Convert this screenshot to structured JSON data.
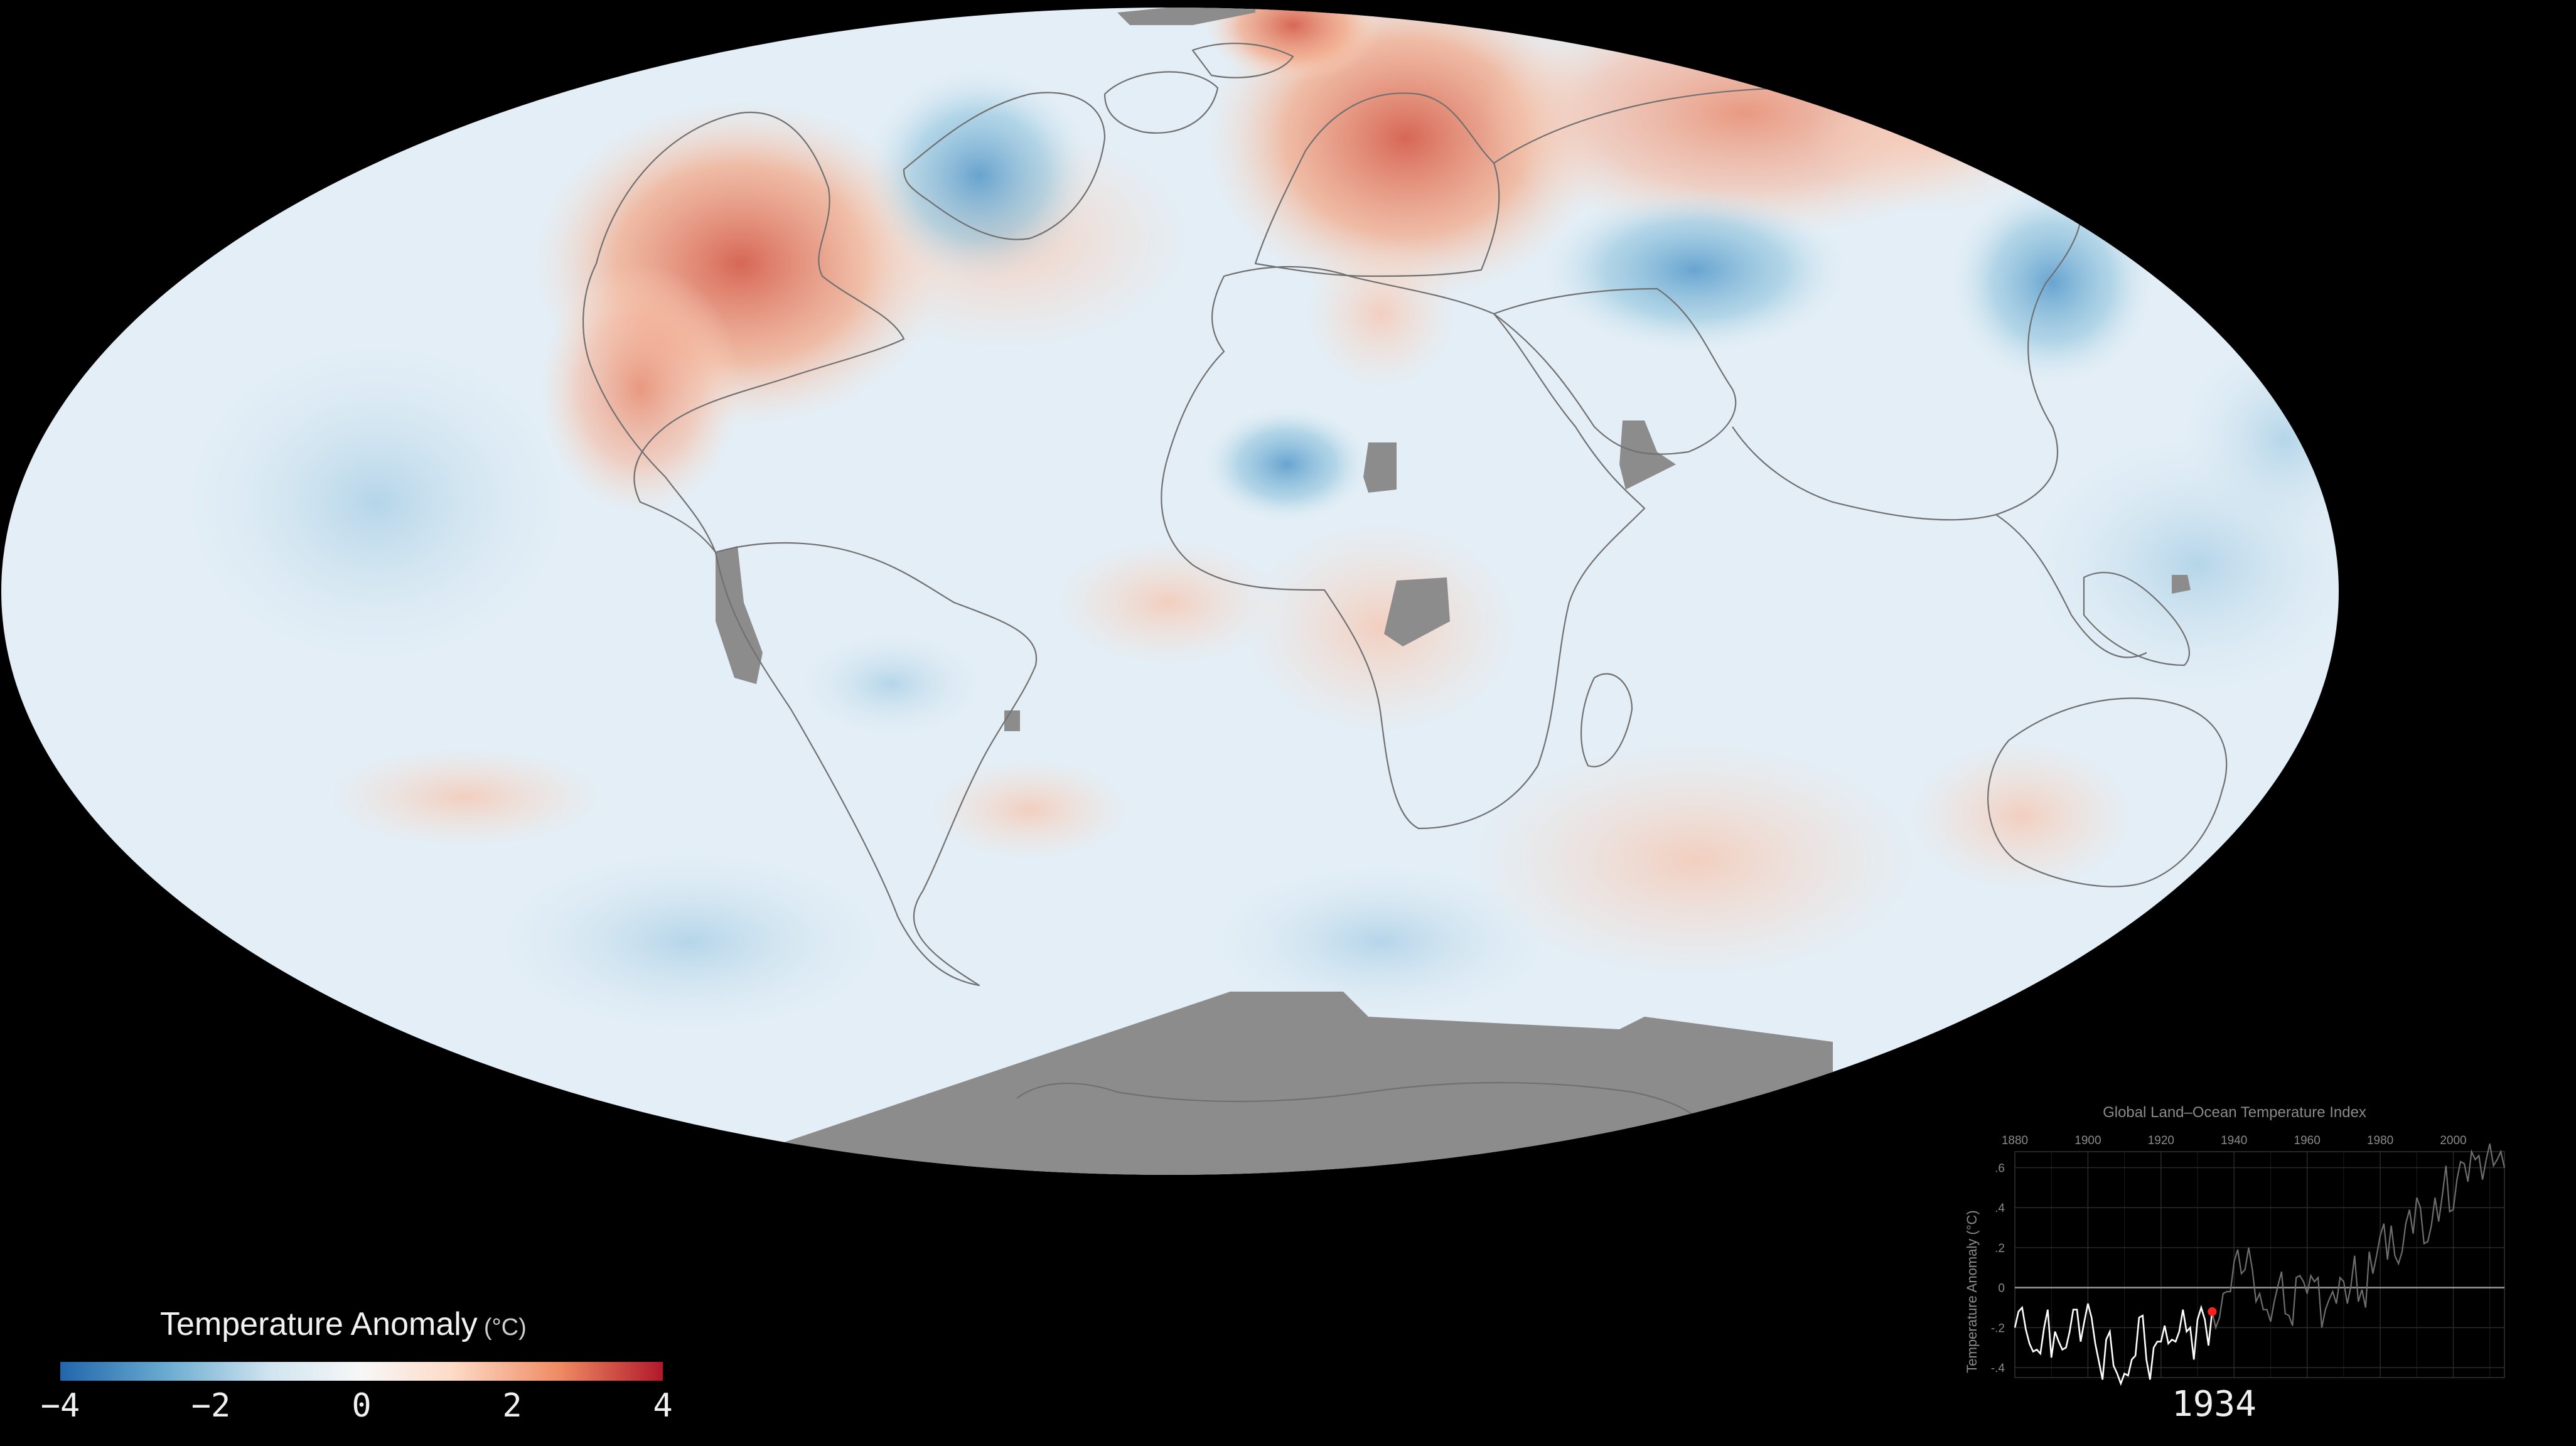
{
  "legend": {
    "title": "Temperature Anomaly",
    "unit": "(°C)",
    "ticks": [
      "−4",
      "−2",
      "0",
      "2",
      "4"
    ],
    "colors": [
      "#2166ac",
      "#67a9cf",
      "#d1e5f0",
      "#f7f7f7",
      "#fddbc7",
      "#ef8a62",
      "#b2182b"
    ]
  },
  "inset": {
    "title": "Global Land–Ocean Temperature Index",
    "ylabel": "Temperature Anomaly (°C)",
    "x_ticks": [
      "1880",
      "1900",
      "1920",
      "1940",
      "1960",
      "1980",
      "2000"
    ],
    "y_ticks": [
      ".6",
      ".4",
      ".2",
      "0",
      "-.2",
      "-.4"
    ]
  },
  "current_year": "1934",
  "chart_data": {
    "type": "line",
    "title": "Global Land–Ocean Temperature Index",
    "xlabel": "",
    "ylabel": "Temperature Anomaly (°C)",
    "xlim": [
      1880,
      2014
    ],
    "ylim": [
      -0.45,
      0.68
    ],
    "highlight_year": 1934,
    "x": [
      1880,
      1881,
      1882,
      1883,
      1884,
      1885,
      1886,
      1887,
      1888,
      1889,
      1890,
      1891,
      1892,
      1893,
      1894,
      1895,
      1896,
      1897,
      1898,
      1899,
      1900,
      1901,
      1902,
      1903,
      1904,
      1905,
      1906,
      1907,
      1908,
      1909,
      1910,
      1911,
      1912,
      1913,
      1914,
      1915,
      1916,
      1917,
      1918,
      1919,
      1920,
      1921,
      1922,
      1923,
      1924,
      1925,
      1926,
      1927,
      1928,
      1929,
      1930,
      1931,
      1932,
      1933,
      1934,
      1935,
      1936,
      1937,
      1938,
      1939,
      1940,
      1941,
      1942,
      1943,
      1944,
      1945,
      1946,
      1947,
      1948,
      1949,
      1950,
      1951,
      1952,
      1953,
      1954,
      1955,
      1956,
      1957,
      1958,
      1959,
      1960,
      1961,
      1962,
      1963,
      1964,
      1965,
      1966,
      1967,
      1968,
      1969,
      1970,
      1971,
      1972,
      1973,
      1974,
      1975,
      1976,
      1977,
      1978,
      1979,
      1980,
      1981,
      1982,
      1983,
      1984,
      1985,
      1986,
      1987,
      1988,
      1989,
      1990,
      1991,
      1992,
      1993,
      1994,
      1995,
      1996,
      1997,
      1998,
      1999,
      2000,
      2001,
      2002,
      2003,
      2004,
      2005,
      2006,
      2007,
      2008,
      2009,
      2010,
      2011,
      2012,
      2013,
      2014
    ],
    "values": [
      -0.2,
      -0.12,
      -0.1,
      -0.21,
      -0.28,
      -0.32,
      -0.31,
      -0.33,
      -0.2,
      -0.11,
      -0.35,
      -0.22,
      -0.27,
      -0.31,
      -0.3,
      -0.22,
      -0.11,
      -0.11,
      -0.27,
      -0.17,
      -0.08,
      -0.15,
      -0.28,
      -0.37,
      -0.46,
      -0.26,
      -0.22,
      -0.39,
      -0.43,
      -0.48,
      -0.43,
      -0.44,
      -0.36,
      -0.34,
      -0.15,
      -0.14,
      -0.36,
      -0.46,
      -0.3,
      -0.27,
      -0.27,
      -0.19,
      -0.28,
      -0.26,
      -0.27,
      -0.22,
      -0.11,
      -0.22,
      -0.2,
      -0.36,
      -0.16,
      -0.1,
      -0.16,
      -0.29,
      -0.12,
      -0.2,
      -0.15,
      -0.03,
      -0.02,
      -0.02,
      0.13,
      0.19,
      0.07,
      0.09,
      0.2,
      0.09,
      -0.07,
      -0.03,
      -0.11,
      -0.11,
      -0.17,
      -0.07,
      0.01,
      0.08,
      -0.13,
      -0.14,
      -0.19,
      0.05,
      0.06,
      0.03,
      -0.03,
      0.06,
      0.03,
      0.05,
      -0.2,
      -0.11,
      -0.06,
      -0.02,
      -0.08,
      0.05,
      0.03,
      -0.08,
      0.01,
      0.16,
      -0.07,
      -0.01,
      -0.1,
      0.18,
      0.07,
      0.16,
      0.26,
      0.32,
      0.14,
      0.31,
      0.16,
      0.12,
      0.18,
      0.32,
      0.39,
      0.27,
      0.45,
      0.4,
      0.22,
      0.23,
      0.31,
      0.45,
      0.33,
      0.46,
      0.61,
      0.38,
      0.39,
      0.54,
      0.63,
      0.62,
      0.53,
      0.68,
      0.64,
      0.66,
      0.54,
      0.64,
      0.72,
      0.61,
      0.64,
      0.68,
      0.6
    ]
  }
}
